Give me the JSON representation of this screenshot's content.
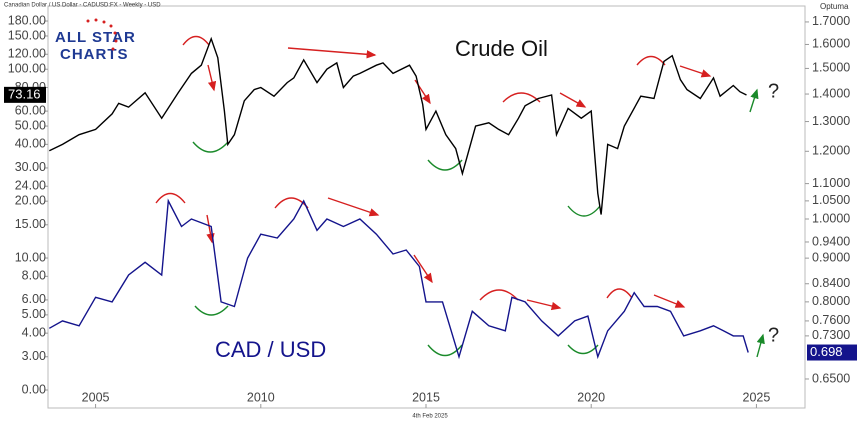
{
  "chart_data": {
    "type": "line",
    "title": "Canadian Dollar / US Dollar - CADUSD:FX - Weekly - USD",
    "logo": [
      "ALL STAR",
      "CHARTS"
    ],
    "brand": "Optuma",
    "footer": "4th Feb 2025",
    "log_scale": true,
    "xlim": [
      2003.56,
      2026.47
    ],
    "xticks": [
      2005,
      2010,
      2015,
      2020,
      2025
    ],
    "ylim": [
      2.0,
      211
    ],
    "yticks": [
      {
        "value": 180,
        "label": "180.00"
      },
      {
        "value": 150,
        "label": "150.00"
      },
      {
        "value": 120,
        "label": "120.00"
      },
      {
        "value": 100,
        "label": "100.00"
      },
      {
        "value": 80,
        "label": "80.00"
      },
      {
        "value": 60,
        "label": "60.00"
      },
      {
        "value": 50,
        "label": "50.00"
      },
      {
        "value": 40,
        "label": "40.00"
      },
      {
        "value": 30,
        "label": "30.00"
      },
      {
        "value": 24,
        "label": "24.00"
      },
      {
        "value": 20,
        "label": "20.00"
      },
      {
        "value": 15,
        "label": "15.00"
      },
      {
        "value": 10,
        "label": "10.00"
      },
      {
        "value": 8,
        "label": "8.00"
      },
      {
        "value": 6,
        "label": "6.00"
      },
      {
        "value": 5,
        "label": "5.00"
      },
      {
        "value": 4,
        "label": "4.00"
      },
      {
        "value": 3,
        "label": "3.00"
      },
      {
        "value": 0,
        "label": "0.00"
      }
    ],
    "y2lim": [
      0.631,
      1.765
    ],
    "y2ticks": [
      {
        "value": 1.7,
        "label": "1.7000"
      },
      {
        "value": 1.6,
        "label": "1.6000"
      },
      {
        "value": 1.5,
        "label": "1.5000"
      },
      {
        "value": 1.4,
        "label": "1.4000"
      },
      {
        "value": 1.3,
        "label": "1.3000"
      },
      {
        "value": 1.2,
        "label": "1.2000"
      },
      {
        "value": 1.1,
        "label": "1.1000"
      },
      {
        "value": 1.05,
        "label": "1.0500"
      },
      {
        "value": 1.0,
        "label": "1.0000"
      },
      {
        "value": 0.94,
        "label": "0.9400"
      },
      {
        "value": 0.9,
        "label": "0.9000"
      },
      {
        "value": 0.84,
        "label": "0.8400"
      },
      {
        "value": 0.8,
        "label": "0.8000"
      },
      {
        "value": 0.76,
        "label": "0.7600"
      },
      {
        "value": 0.73,
        "label": "0.7300"
      },
      {
        "value": 0.65,
        "label": "0.6500"
      }
    ],
    "annotations": [
      "?",
      "?"
    ],
    "series": [
      {
        "name": "Crude Oil",
        "color": "#000000",
        "last_value": 73.16,
        "x": [
          2003.6,
          2004.0,
          2004.5,
          2005.0,
          2005.5,
          2005.7,
          2006.0,
          2006.5,
          2007.0,
          2007.5,
          2007.9,
          2008.2,
          2008.5,
          2008.7,
          2008.9,
          2009.0,
          2009.2,
          2009.5,
          2009.8,
          2010.0,
          2010.4,
          2010.8,
          2011.0,
          2011.3,
          2011.7,
          2012.0,
          2012.3,
          2012.5,
          2012.8,
          2013.0,
          2013.5,
          2013.7,
          2014.0,
          2014.5,
          2014.7,
          2014.9,
          2015.0,
          2015.3,
          2015.6,
          2015.9,
          2016.1,
          2016.5,
          2016.9,
          2017.2,
          2017.5,
          2017.8,
          2018.0,
          2018.4,
          2018.8,
          2018.95,
          2019.3,
          2019.7,
          2020.0,
          2020.2,
          2020.3,
          2020.5,
          2020.8,
          2021.0,
          2021.5,
          2021.9,
          2022.2,
          2022.45,
          2022.7,
          2022.9,
          2023.3,
          2023.7,
          2023.9,
          2024.3,
          2024.5,
          2024.7
        ],
        "values": [
          37,
          40,
          45,
          48,
          58,
          66,
          63,
          75,
          55,
          75,
          95,
          105,
          145,
          115,
          60,
          40,
          45,
          68,
          78,
          80,
          72,
          85,
          90,
          112,
          85,
          100,
          108,
          80,
          92,
          95,
          105,
          108,
          95,
          105,
          92,
          65,
          48,
          60,
          45,
          38,
          28,
          50,
          52,
          48,
          45,
          55,
          64,
          70,
          73,
          45,
          62,
          55,
          60,
          22,
          17,
          40,
          38,
          50,
          72,
          70,
          110,
          118,
          88,
          78,
          70,
          90,
          72,
          82,
          76,
          73
        ]
      },
      {
        "name": "CAD / USD",
        "color": "#14148c",
        "axis": "y2",
        "last_value": 0.698,
        "x": [
          2003.6,
          2004.0,
          2004.5,
          2005.0,
          2005.5,
          2006.0,
          2006.5,
          2007.0,
          2007.2,
          2007.6,
          2007.9,
          2008.5,
          2008.8,
          2009.2,
          2009.6,
          2010.0,
          2010.5,
          2011.0,
          2011.3,
          2011.7,
          2012.0,
          2012.5,
          2013.0,
          2013.5,
          2014.0,
          2014.4,
          2014.8,
          2015.0,
          2015.5,
          2016.0,
          2016.4,
          2016.9,
          2017.4,
          2017.6,
          2018.0,
          2018.5,
          2019.0,
          2019.5,
          2019.9,
          2020.2,
          2020.5,
          2021.0,
          2021.3,
          2021.6,
          2022.0,
          2022.4,
          2022.8,
          2023.3,
          2023.7,
          2024.0,
          2024.3,
          2024.6,
          2024.75
        ],
        "values": [
          0.745,
          0.76,
          0.75,
          0.81,
          0.8,
          0.86,
          0.89,
          0.86,
          1.05,
          0.98,
          1.0,
          0.98,
          0.8,
          0.79,
          0.9,
          0.96,
          0.95,
          1.0,
          1.05,
          0.97,
          1.0,
          0.98,
          1.0,
          0.96,
          0.91,
          0.92,
          0.88,
          0.8,
          0.8,
          0.69,
          0.78,
          0.75,
          0.74,
          0.81,
          0.8,
          0.76,
          0.73,
          0.76,
          0.77,
          0.69,
          0.74,
          0.78,
          0.82,
          0.79,
          0.79,
          0.78,
          0.73,
          0.74,
          0.75,
          0.74,
          0.73,
          0.73,
          0.698
        ]
      }
    ]
  }
}
